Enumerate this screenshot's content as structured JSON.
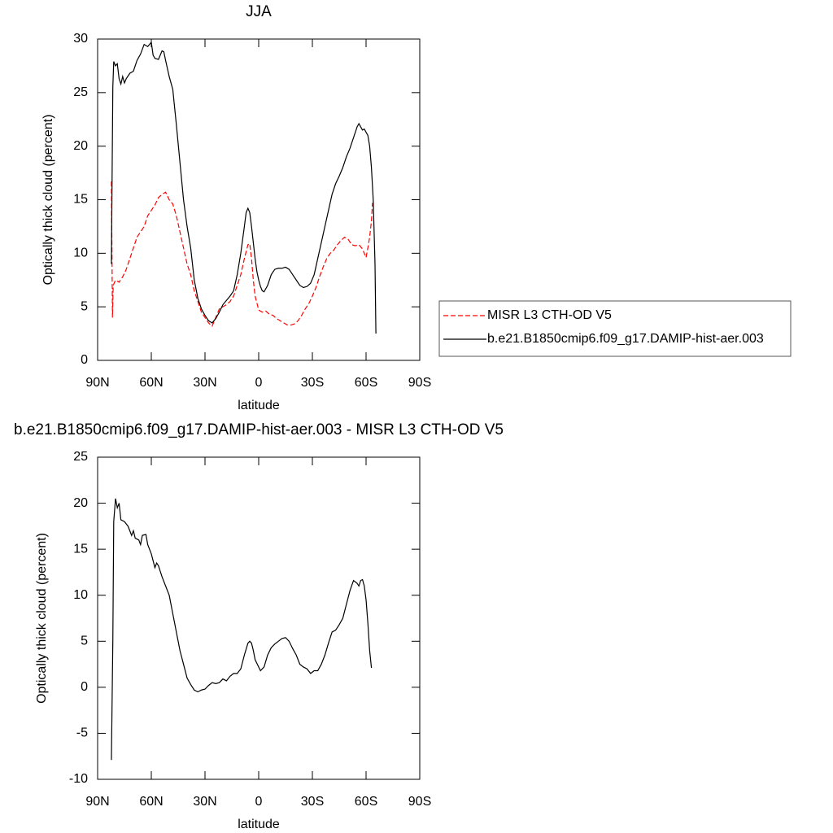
{
  "chart_data": [
    {
      "type": "line",
      "title": "JJA",
      "x_label": "latitude",
      "y_label": "Optically thick cloud (percent)",
      "xlim": [
        90,
        -90
      ],
      "ylim": [
        0,
        30
      ],
      "xticks": [
        {
          "value": 90,
          "label": "90N"
        },
        {
          "value": 60,
          "label": "60N"
        },
        {
          "value": 30,
          "label": "30N"
        },
        0,
        {
          "value": -30,
          "label": "30S"
        },
        {
          "value": -60,
          "label": "60S"
        },
        {
          "value": -90,
          "label": "90S"
        }
      ],
      "yticks": [
        0,
        5,
        10,
        15,
        20,
        25,
        30
      ],
      "legend": "outside-right",
      "series": [
        {
          "name": "MISR L3 CTH-OD V5",
          "color": "#ff0000",
          "line_style": "dashed",
          "x": [
            82.3,
            81.7,
            81.3,
            80,
            78,
            76,
            74,
            72,
            70,
            68,
            66,
            64,
            62,
            60,
            58,
            56,
            54,
            52,
            50,
            48,
            46,
            44,
            42,
            40,
            38,
            36,
            34,
            32,
            30,
            28,
            26,
            24,
            22,
            20,
            18,
            16,
            14,
            12,
            10,
            8,
            6,
            5,
            4,
            3,
            2,
            0,
            -2,
            -4,
            -6,
            -8,
            -10,
            -12,
            -14,
            -16,
            -18,
            -20,
            -22,
            -24,
            -26,
            -28,
            -30,
            -32,
            -34,
            -36,
            -38,
            -40,
            -42,
            -44,
            -46,
            -48,
            -50,
            -52,
            -54,
            -56,
            -58,
            -60,
            -61,
            -62,
            -63,
            -63.6
          ],
          "values": [
            16.7,
            4,
            7,
            7.5,
            7.3,
            7.8,
            8.5,
            9.5,
            10.5,
            11.5,
            12,
            12.5,
            13.5,
            14,
            14.5,
            15.2,
            15.5,
            15.7,
            15,
            14.6,
            13.5,
            12,
            10.5,
            9,
            8,
            6.5,
            5.5,
            4.5,
            4,
            3.5,
            3.2,
            4,
            4.8,
            5,
            5.2,
            5.5,
            6,
            7,
            8,
            9.5,
            10.8,
            10.9,
            9.5,
            7.5,
            6,
            4.7,
            4.5,
            4.6,
            4.3,
            4.2,
            3.9,
            3.7,
            3.5,
            3.3,
            3.3,
            3.4,
            3.7,
            4.2,
            4.8,
            5.3,
            6,
            6.8,
            7.8,
            8.7,
            9.5,
            10,
            10.3,
            10.8,
            11.2,
            11.5,
            11.3,
            10.8,
            10.7,
            10.8,
            10.4,
            9.6,
            10.5,
            11.5,
            13,
            14.7
          ]
        },
        {
          "name": "b.e21.B1850cmip6.f09_g17.DAMIP-hist-aer.003",
          "color": "#000000",
          "line_style": "solid",
          "x": [
            82.3,
            81.5,
            81,
            80,
            79,
            78,
            77,
            76,
            75,
            74,
            72,
            70,
            68,
            66,
            64,
            62,
            60,
            59,
            58,
            56,
            54,
            53,
            52,
            50,
            48,
            46,
            44,
            42,
            40,
            38,
            36,
            34,
            32,
            30,
            28,
            26,
            24,
            22,
            20,
            18,
            16,
            14,
            12,
            10,
            8,
            7,
            6,
            5,
            4,
            3,
            2,
            1,
            0,
            -1,
            -2,
            -3,
            -5,
            -7,
            -9,
            -11,
            -13,
            -15,
            -17,
            -19,
            -21,
            -23,
            -25,
            -27,
            -29,
            -31,
            -33,
            -35,
            -37,
            -39,
            -41,
            -43,
            -45,
            -47,
            -49,
            -51,
            -53,
            -55,
            -56,
            -57,
            -58,
            -59,
            -60,
            -61,
            -62,
            -63,
            -64,
            -65,
            -65.5
          ],
          "values": [
            9,
            25.5,
            27.9,
            27.5,
            27.7,
            26.3,
            25.8,
            26.5,
            25.9,
            26.3,
            26.8,
            27,
            28,
            28.6,
            29.5,
            29.3,
            29.7,
            28.5,
            28.2,
            28.1,
            28.9,
            28.8,
            28,
            26.5,
            25.3,
            22,
            18.5,
            15,
            12.5,
            10.5,
            7.5,
            5.8,
            4.8,
            4.2,
            3.7,
            3.5,
            3.9,
            4.5,
            5.2,
            5.6,
            6,
            6.5,
            8,
            10,
            12.5,
            13.8,
            14.2,
            13.8,
            12.5,
            11,
            9.5,
            8.3,
            7.5,
            6.9,
            6.5,
            6.4,
            7,
            8,
            8.5,
            8.6,
            8.6,
            8.7,
            8.5,
            8,
            7.5,
            7,
            6.8,
            6.9,
            7.2,
            8,
            9.5,
            11,
            12.5,
            14,
            15.5,
            16.5,
            17.2,
            18,
            19,
            19.8,
            20.8,
            21.8,
            22.1,
            21.8,
            21.5,
            21.6,
            21.3,
            21,
            20,
            18,
            15,
            9,
            2.5
          ]
        }
      ]
    },
    {
      "type": "line",
      "title": "b.e21.B1850cmip6.f09_g17.DAMIP-hist-aer.003 - MISR L3 CTH-OD V5",
      "x_label": "latitude",
      "y_label": "Optically thick cloud (percent)",
      "xlim": [
        90,
        -90
      ],
      "ylim": [
        -10,
        25
      ],
      "xticks": [
        {
          "value": 90,
          "label": "90N"
        },
        {
          "value": 60,
          "label": "60N"
        },
        {
          "value": 30,
          "label": "30N"
        },
        0,
        {
          "value": -30,
          "label": "30S"
        },
        {
          "value": -60,
          "label": "60S"
        },
        {
          "value": -90,
          "label": "90S"
        }
      ],
      "yticks": [
        -10,
        -5,
        0,
        5,
        10,
        15,
        20,
        25
      ],
      "series": [
        {
          "color": "#000000",
          "line_style": "solid",
          "x": [
            82.3,
            81.5,
            81,
            80,
            79,
            78,
            77,
            75,
            73,
            71,
            70,
            69,
            67,
            66,
            65,
            63,
            62,
            60,
            58,
            57,
            56,
            54,
            52,
            50,
            48,
            46,
            44,
            42,
            40,
            38,
            36,
            34,
            32,
            30,
            28,
            26,
            24,
            22,
            20,
            18,
            16,
            14,
            12,
            10,
            8,
            6,
            5,
            4,
            3,
            2,
            0,
            -1,
            -3,
            -5,
            -7,
            -9,
            -11,
            -13,
            -15,
            -17,
            -19,
            -21,
            -23,
            -25,
            -27,
            -29,
            -31,
            -33,
            -35,
            -37,
            -39,
            -41,
            -43,
            -45,
            -47,
            -49,
            -51,
            -53,
            -55,
            -56,
            -57,
            -58,
            -59,
            -60,
            -61,
            -62,
            -63
          ],
          "values": [
            -7.9,
            5,
            18,
            20.5,
            19.5,
            20,
            18.2,
            18,
            17.5,
            16.5,
            17,
            16.2,
            16,
            15.5,
            16.5,
            16.6,
            15.5,
            14.5,
            13,
            13.5,
            13.2,
            12,
            11,
            10,
            8,
            6,
            4,
            2.5,
            1,
            0.3,
            -0.3,
            -0.5,
            -0.3,
            -0.2,
            0.2,
            0.5,
            0.4,
            0.5,
            0.9,
            0.7,
            1.2,
            1.5,
            1.5,
            2,
            3.5,
            4.8,
            5,
            4.8,
            4,
            3,
            2.2,
            1.8,
            2.2,
            3.5,
            4.3,
            4.7,
            5,
            5.3,
            5.4,
            5,
            4.2,
            3.5,
            2.5,
            2.2,
            2,
            1.5,
            1.8,
            1.8,
            2.5,
            3.5,
            4.8,
            6,
            6.2,
            6.8,
            7.5,
            9,
            10.5,
            11.6,
            11.3,
            11,
            11.6,
            11.7,
            11,
            9.5,
            7,
            4,
            2.1
          ]
        }
      ]
    }
  ]
}
